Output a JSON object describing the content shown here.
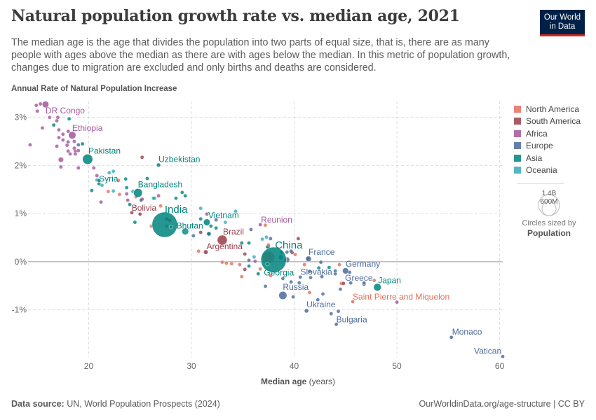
{
  "header": {
    "title": "Natural population growth rate vs. median age, 2021",
    "subtitle": "The median age is the age that divides the population into two parts of equal size, that is, there are as many people with ages above the median as there are with ages below the median. In this metric of population growth, changes due to migration are excluded and only births and deaths are considered.",
    "logo_line1": "Our World",
    "logo_line2": "in Data"
  },
  "footer": {
    "source_label": "Data source:",
    "source": "UN, World Population Prospects (2024)",
    "link": "OurWorldinData.org/age-structure | CC BY"
  },
  "size_legend": {
    "big": "1.4B",
    "small": "600M",
    "caption": "Circles sized by",
    "variable": "Population"
  },
  "chart_data": {
    "type": "scatter",
    "title": "Natural population growth rate vs. median age, 2021",
    "ylabel": "Annual Rate of Natural Population Increase",
    "xlabel_main": "Median age",
    "xlabel_unit": "(years)",
    "xlim": [
      14.1,
      60.3
    ],
    "ylim": [
      -1.98,
      3.33
    ],
    "xticks": [
      20,
      30,
      40,
      50,
      60
    ],
    "yticks": [
      {
        "v": 3,
        "label": "3%"
      },
      {
        "v": 2,
        "label": "2%"
      },
      {
        "v": 1,
        "label": "1%"
      },
      {
        "v": 0,
        "label": "0%"
      },
      {
        "v": -1,
        "label": "-1%"
      }
    ],
    "grid": true,
    "legend_position": "right",
    "size_variable": "Population (millions)",
    "continents": [
      {
        "key": "NA",
        "name": "North America",
        "color": "#E56E5A"
      },
      {
        "key": "SA",
        "name": "South America",
        "color": "#9A3E4A"
      },
      {
        "key": "AF",
        "name": "Africa",
        "color": "#A2559C"
      },
      {
        "key": "EU",
        "name": "Europe",
        "color": "#4C6A9C"
      },
      {
        "key": "AS",
        "name": "Asia",
        "color": "#00847E"
      },
      {
        "key": "OC",
        "name": "Oceania",
        "color": "#38AABA"
      }
    ],
    "labeled": [
      {
        "name": "DR Congo",
        "age": 15.8,
        "rate": 3.27,
        "c": "AF",
        "pop": 95
      },
      {
        "name": "Ethiopia",
        "age": 18.4,
        "rate": 2.63,
        "c": "AF",
        "pop": 120
      },
      {
        "name": "Pakistan",
        "age": 19.9,
        "rate": 2.13,
        "c": "AS",
        "pop": 231
      },
      {
        "name": "Uzbekistan",
        "age": 26.8,
        "rate": 2.01,
        "c": "AS",
        "pop": 34
      },
      {
        "name": "Syria",
        "age": 21.0,
        "rate": 1.69,
        "c": "AS",
        "pop": 21
      },
      {
        "name": "Bangladesh",
        "age": 24.8,
        "rate": 1.43,
        "c": "AS",
        "pop": 170
      },
      {
        "name": "Bolivia",
        "age": 25.0,
        "rate": 0.99,
        "c": "SA",
        "pop": 12
      },
      {
        "name": "India",
        "age": 27.4,
        "rate": 0.77,
        "c": "AS",
        "pop": 1410
      },
      {
        "name": "Bhutan",
        "age": 28.0,
        "rate": 0.72,
        "c": "AS",
        "pop": 0.8
      },
      {
        "name": "Vietnam",
        "age": 31.5,
        "rate": 0.82,
        "c": "AS",
        "pop": 98
      },
      {
        "name": "Reunion",
        "age": 36.7,
        "rate": 0.77,
        "c": "AF",
        "pop": 1
      },
      {
        "name": "Brazil",
        "age": 33.0,
        "rate": 0.45,
        "c": "SA",
        "pop": 214
      },
      {
        "name": "Argentina",
        "age": 31.4,
        "rate": 0.2,
        "c": "SA",
        "pop": 45
      },
      {
        "name": "China",
        "age": 38.0,
        "rate": 0.04,
        "c": "AS",
        "pop": 1425
      },
      {
        "name": "Georgia",
        "age": 37.4,
        "rate": -0.05,
        "c": "AS",
        "pop": 4
      },
      {
        "name": "France",
        "age": 41.4,
        "rate": 0.06,
        "c": "EU",
        "pop": 68
      },
      {
        "name": "Slovakia",
        "age": 41.5,
        "rate": -0.2,
        "c": "EU",
        "pop": 5
      },
      {
        "name": "Germany",
        "age": 45.0,
        "rate": -0.19,
        "c": "EU",
        "pop": 83
      },
      {
        "name": "Russia",
        "age": 38.9,
        "rate": -0.7,
        "c": "EU",
        "pop": 145
      },
      {
        "name": "Greece",
        "age": 46.8,
        "rate": -0.44,
        "c": "EU",
        "pop": 10
      },
      {
        "name": "Japan",
        "age": 48.1,
        "rate": -0.53,
        "c": "AS",
        "pop": 125
      },
      {
        "name": "Saint Pierre and Miquelon",
        "age": 45.7,
        "rate": -0.83,
        "c": "NA",
        "pop": 0.006
      },
      {
        "name": "Ukraine",
        "age": 41.2,
        "rate": -1.02,
        "c": "EU",
        "pop": 40
      },
      {
        "name": "Bulgaria",
        "age": 44.1,
        "rate": -1.3,
        "c": "EU",
        "pop": 7
      },
      {
        "name": "Monaco",
        "age": 55.3,
        "rate": -1.57,
        "c": "EU",
        "pop": 0.04
      },
      {
        "name": "Vatican",
        "age": 60.3,
        "rate": -1.97,
        "c": "EU",
        "pop": 0.001
      }
    ],
    "others": {
      "AF": [
        [
          14.9,
          3.25
        ],
        [
          15.3,
          3.28
        ],
        [
          15.0,
          3.13
        ],
        [
          16.2,
          3.0
        ],
        [
          17.0,
          3.0,
          30
        ],
        [
          16.9,
          2.93
        ],
        [
          15.5,
          2.78
        ],
        [
          17.1,
          2.74
        ],
        [
          17.5,
          2.65
        ],
        [
          18.0,
          2.71
        ],
        [
          17.1,
          2.58
        ],
        [
          17.5,
          2.53
        ],
        [
          18.0,
          2.49
        ],
        [
          18.6,
          2.5
        ],
        [
          14.3,
          2.43
        ],
        [
          16.9,
          2.4
        ],
        [
          17.9,
          2.42
        ],
        [
          18.6,
          2.36
        ],
        [
          18.7,
          2.3
        ],
        [
          18.0,
          2.3
        ],
        [
          18.2,
          2.24
        ],
        [
          18.7,
          2.24
        ],
        [
          19.0,
          2.31
        ],
        [
          17.3,
          2.12,
          60
        ],
        [
          17.3,
          1.97
        ],
        [
          19.0,
          1.95,
          30
        ],
        [
          20.5,
          1.95
        ],
        [
          20.8,
          1.79
        ],
        [
          21.2,
          1.24
        ],
        [
          23.7,
          1.41,
          28
        ],
        [
          23.8,
          1.28
        ],
        [
          26.8,
          1.37
        ],
        [
          27.6,
          0.74
        ],
        [
          31.5,
          0.99
        ],
        [
          31.7,
          0.58
        ],
        [
          36.2,
          0.01
        ],
        [
          50.0,
          -0.84
        ]
      ],
      "AS": [
        [
          18.1,
          2.97
        ],
        [
          16.6,
          2.84
        ],
        [
          19.4,
          2.45
        ],
        [
          23.6,
          1.72
        ],
        [
          23.7,
          1.54
        ],
        [
          25.7,
          1.73
        ],
        [
          20.3,
          1.48
        ],
        [
          21.0,
          1.62
        ],
        [
          24.0,
          1.19
        ],
        [
          24.5,
          0.82,
          30
        ],
        [
          28.5,
          1.32
        ],
        [
          29.1,
          1.44
        ],
        [
          29.4,
          1.37
        ],
        [
          26.4,
          1.32
        ],
        [
          29.4,
          0.63,
          97
        ],
        [
          31.9,
          0.74
        ],
        [
          31.7,
          0.58,
          40
        ],
        [
          30.9,
          0.89
        ],
        [
          32.4,
          0.7
        ],
        [
          34.9,
          0.39
        ],
        [
          37.5,
          0.31
        ],
        [
          38.8,
          0.2
        ],
        [
          35.6,
          -0.09
        ],
        [
          35.6,
          0.39
        ],
        [
          36.5,
          -0.25
        ],
        [
          37.4,
          0.31
        ],
        [
          38.7,
          0.09,
          50
        ],
        [
          42.4,
          -0.13
        ],
        [
          43.4,
          -0.12,
          15
        ]
      ],
      "OC": [
        [
          22.0,
          1.85
        ],
        [
          22.4,
          1.88
        ],
        [
          20.8,
          1.7
        ],
        [
          21.3,
          1.59
        ],
        [
          22.4,
          1.47
        ],
        [
          24.3,
          1.46
        ],
        [
          26.3,
          1.32
        ],
        [
          30.9,
          1.11
        ],
        [
          34.3,
          1.05
        ],
        [
          33.3,
          0.82
        ],
        [
          37.3,
          0.51
        ],
        [
          36.1,
          0.1
        ],
        [
          36.9,
          0.47
        ]
      ],
      "NA": [
        [
          22.9,
          1.69
        ],
        [
          21.9,
          1.46
        ],
        [
          23.0,
          1.4
        ],
        [
          24.6,
          1.35
        ],
        [
          27.0,
          1.16
        ],
        [
          26.1,
          0.74
        ],
        [
          30.7,
          0.22
        ],
        [
          37.2,
          0.76
        ],
        [
          40.1,
          0.15
        ],
        [
          33.0,
          -0.01
        ],
        [
          33.4,
          -0.03
        ],
        [
          33.9,
          -0.04
        ],
        [
          34.7,
          -0.06
        ],
        [
          37.5,
          0.35
        ],
        [
          37.5,
          0.09,
          330
        ],
        [
          34.9,
          -0.31
        ],
        [
          37.7,
          -0.29
        ],
        [
          41.0,
          -0.06
        ],
        [
          44.4,
          -0.06
        ],
        [
          44.6,
          -0.45
        ],
        [
          47.8,
          -0.39
        ],
        [
          41.5,
          -0.64
        ],
        [
          36.7,
          -0.15
        ]
      ],
      "SA": [
        [
          25.2,
          2.17
        ],
        [
          25.2,
          1.3
        ],
        [
          24.2,
          1.02
        ],
        [
          27.6,
          0.89
        ],
        [
          30.9,
          0.61
        ],
        [
          35.2,
          0.16
        ],
        [
          35.2,
          -0.16
        ],
        [
          40.4,
          0.48
        ],
        [
          44.8,
          -0.45
        ],
        [
          39.8,
          0.19
        ],
        [
          27.9,
          0.86
        ]
      ],
      "EU": [
        [
          19.0,
          2.43
        ],
        [
          25.1,
          1.28
        ],
        [
          30.2,
          0.54
        ],
        [
          32.4,
          0.87
        ],
        [
          35.8,
          0.67
        ],
        [
          37.7,
          0.48
        ],
        [
          39.3,
          0.2
        ],
        [
          39.7,
          0.22
        ],
        [
          35.6,
          0.03
        ],
        [
          37.2,
          -0.51
        ],
        [
          38.9,
          -0.35
        ],
        [
          39.3,
          0.04,
          67
        ],
        [
          39.7,
          -0.42
        ],
        [
          39.9,
          -0.73
        ],
        [
          40.5,
          -0.44
        ],
        [
          40.6,
          -0.32
        ],
        [
          41.3,
          0.07
        ],
        [
          41.6,
          -0.33
        ],
        [
          42.3,
          -0.79
        ],
        [
          42.6,
          -0.01
        ],
        [
          42.7,
          -0.31
        ],
        [
          42.8,
          -0.67
        ],
        [
          43.6,
          -1.08
        ],
        [
          44.0,
          -0.25,
          20
        ],
        [
          44.0,
          -0.19
        ],
        [
          44.3,
          -1.03
        ],
        [
          44.5,
          -0.57
        ],
        [
          45.4,
          -0.22
        ],
        [
          45.5,
          -0.44
        ],
        [
          46.8,
          -0.47
        ]
      ]
    }
  }
}
